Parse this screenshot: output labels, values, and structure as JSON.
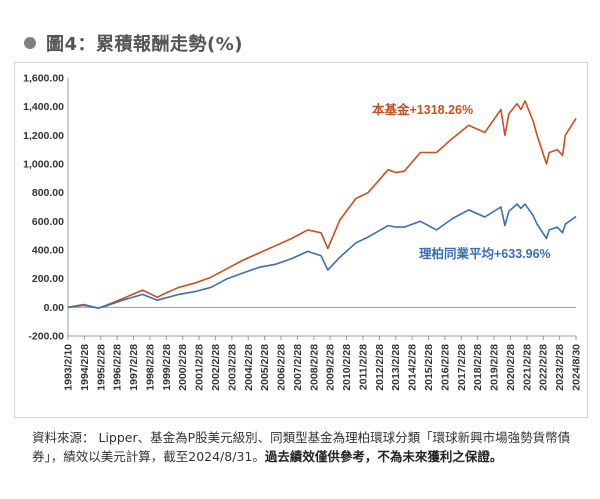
{
  "figure": {
    "title": "圖4：累積報酬走勢(%)"
  },
  "footnote": {
    "text": "資料來源： Lipper、基金為P股美元級別、同類型基金為理柏環球分類「環球新興市場強勢貨幣債券」，績效以美元計算，截至2024/8/31。",
    "bold_text": "過去績效僅供參考，不為未來獲利之保證。"
  },
  "chart_data": {
    "type": "line",
    "title": "",
    "xlabel": "",
    "ylabel": "",
    "ylim": [
      -200,
      1600
    ],
    "yticks": [
      -200,
      0,
      200,
      400,
      600,
      800,
      1000,
      1200,
      1400,
      1600
    ],
    "ytick_labels": [
      "-200.00",
      "0.00",
      "200.00",
      "400.00",
      "600.00",
      "800.00",
      "1,000.00",
      "1,200.00",
      "1,400.00",
      "1,600.00"
    ],
    "xtick_labels": [
      "1993/2/10",
      "1994/2/28",
      "1995/2/28",
      "1996/2/28",
      "1997/2/28",
      "1998/2/28",
      "1999/2/28",
      "2000/2/28",
      "2001/2/28",
      "2002/2/28",
      "2003/2/28",
      "2004/2/28",
      "2005/2/28",
      "2006/2/28",
      "2007/2/28",
      "2008/2/28",
      "2009/2/28",
      "2010/2/28",
      "2011/2/28",
      "2012/2/28",
      "2013/2/28",
      "2014/2/28",
      "2015/2/28",
      "2016/2/28",
      "2017/2/28",
      "2018/2/28",
      "2019/2/28",
      "2020/2/28",
      "2021/2/28",
      "2022/2/28",
      "2023/2/28",
      "2024/8/30"
    ],
    "x": [
      "1993/2/10",
      "1994/1/31",
      "1994/12/31",
      "1995/6/30",
      "1996/6/30",
      "1997/9/30",
      "1998/8/31",
      "1998/12/31",
      "1999/12/31",
      "2000/12/31",
      "2001/12/31",
      "2002/12/31",
      "2003/12/31",
      "2004/12/31",
      "2005/12/31",
      "2006/12/31",
      "2007/12/31",
      "2008/10/31",
      "2009/3/31",
      "2009/12/31",
      "2010/12/31",
      "2011/9/30",
      "2012/12/31",
      "2013/6/30",
      "2013/12/31",
      "2014/12/31",
      "2015/12/31",
      "2016/12/31",
      "2017/12/31",
      "2018/12/31",
      "2019/12/31",
      "2020/3/31",
      "2020/6/30",
      "2020/12/31",
      "2021/3/31",
      "2021/6/30",
      "2021/12/31",
      "2022/3/31",
      "2022/10/31",
      "2022/12/31",
      "2023/6/30",
      "2023/10/31",
      "2023/12/31",
      "2024/8/30"
    ],
    "series": [
      {
        "name": "本基金+1318.26%",
        "color": "#c8501e",
        "values": [
          0,
          20,
          -5,
          15,
          60,
          120,
          70,
          90,
          140,
          170,
          210,
          270,
          330,
          380,
          430,
          480,
          540,
          520,
          410,
          610,
          760,
          800,
          960,
          940,
          950,
          1080,
          1080,
          1180,
          1270,
          1220,
          1380,
          1200,
          1350,
          1420,
          1380,
          1440,
          1300,
          1200,
          1000,
          1080,
          1100,
          1060,
          1200,
          1318.26
        ]
      },
      {
        "name": "理柏同業平均+633.96%",
        "color": "#3c6eb4",
        "values": [
          0,
          15,
          -5,
          10,
          50,
          90,
          50,
          60,
          90,
          110,
          140,
          200,
          240,
          280,
          300,
          340,
          390,
          360,
          260,
          350,
          450,
          490,
          570,
          560,
          560,
          600,
          540,
          620,
          680,
          630,
          700,
          570,
          670,
          720,
          690,
          720,
          640,
          580,
          480,
          540,
          560,
          520,
          580,
          633.96
        ]
      }
    ],
    "grid": false,
    "legend": "inline labels"
  }
}
